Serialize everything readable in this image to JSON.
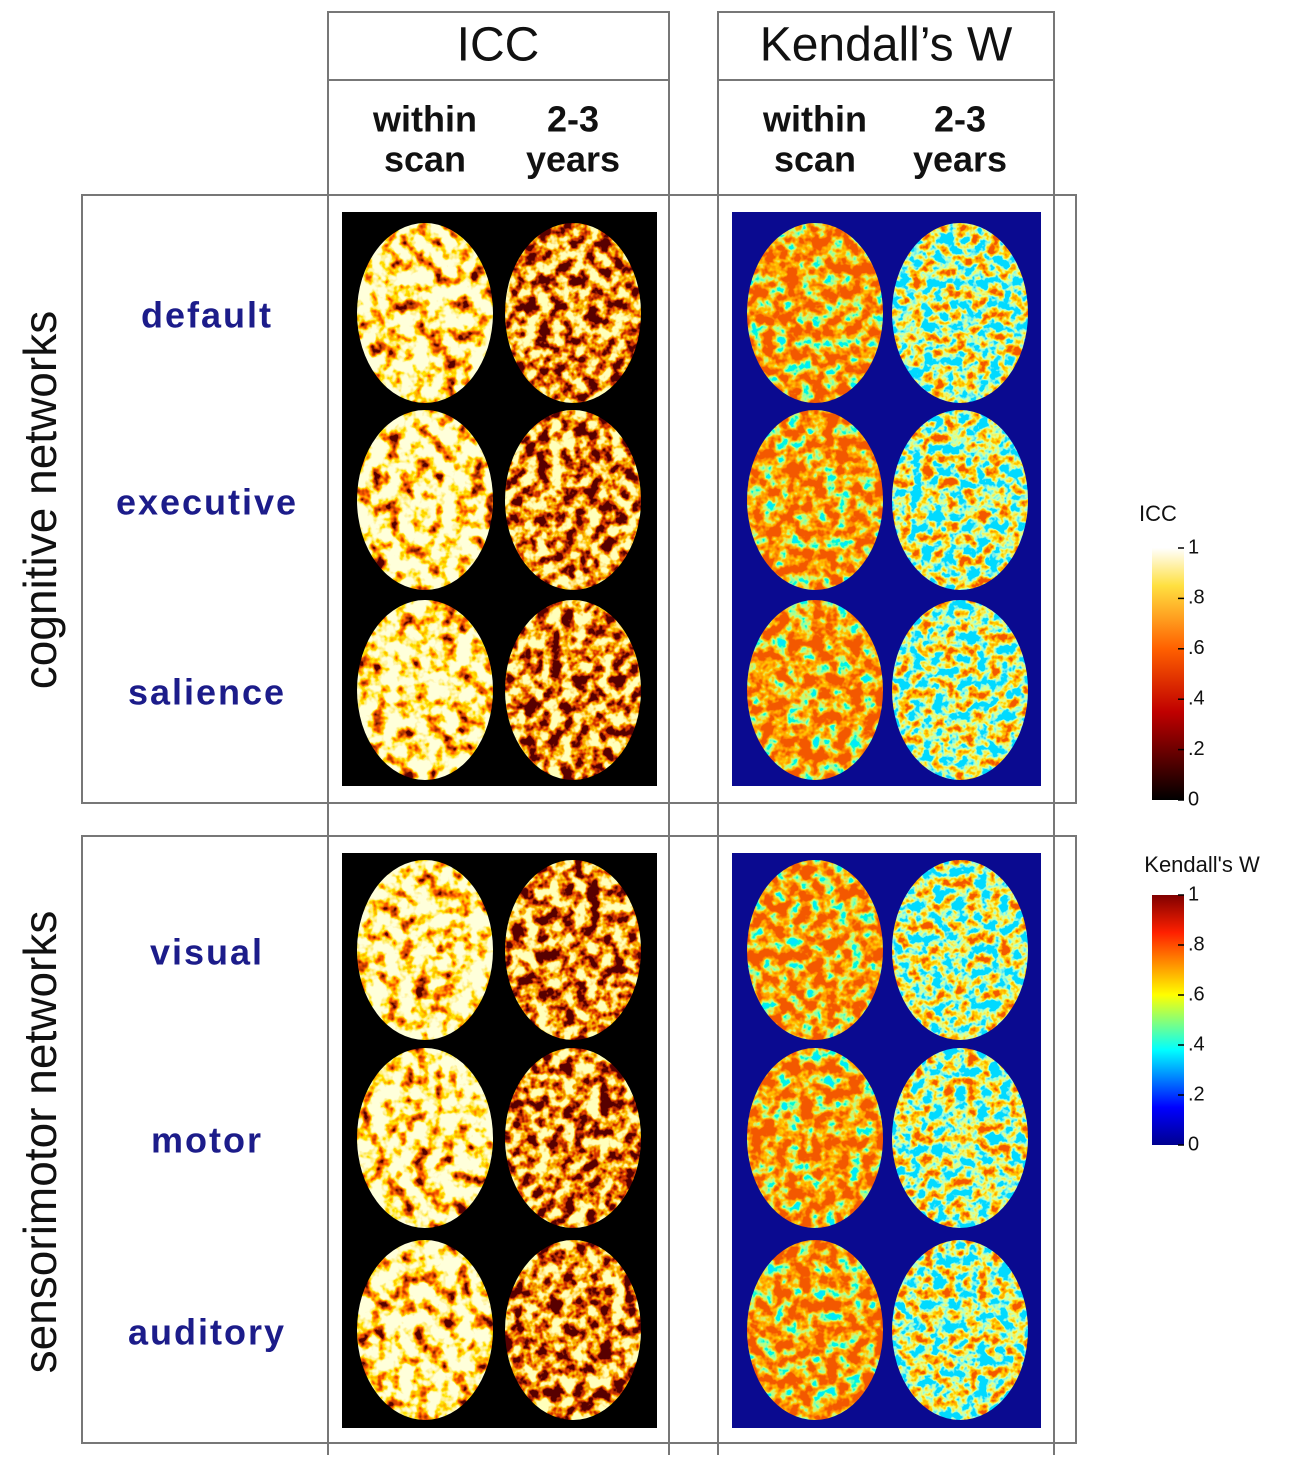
{
  "columns": [
    {
      "title": "ICC",
      "subcolumns": [
        [
          "within",
          "scan"
        ],
        [
          "2-3",
          "years"
        ]
      ]
    },
    {
      "title": "Kendall’s W",
      "subcolumns": [
        [
          "within",
          "scan"
        ],
        [
          "2-3",
          "years"
        ]
      ]
    }
  ],
  "groups": [
    {
      "label": "cognitive networks",
      "rows": [
        "default",
        "executive",
        "salience"
      ]
    },
    {
      "label": "sensorimotor networks",
      "rows": [
        "visual",
        "motor",
        "auditory"
      ]
    }
  ],
  "colorbars": [
    {
      "title": "ICC",
      "ticks": [
        0,
        {
          "value": 0.2,
          "label": ".2"
        },
        {
          "value": 0.4,
          "label": ".4"
        },
        {
          "value": 0.6,
          "label": ".6"
        },
        {
          "value": 0.8,
          "label": ".8"
        },
        1
      ]
    },
    {
      "title": "Kendall's W",
      "ticks": [
        0,
        {
          "value": 0.2,
          "label": ".2"
        },
        {
          "value": 0.4,
          "label": ".4"
        },
        {
          "value": 0.6,
          "label": ".6"
        },
        {
          "value": 0.8,
          "label": ".8"
        },
        1
      ]
    }
  ]
}
